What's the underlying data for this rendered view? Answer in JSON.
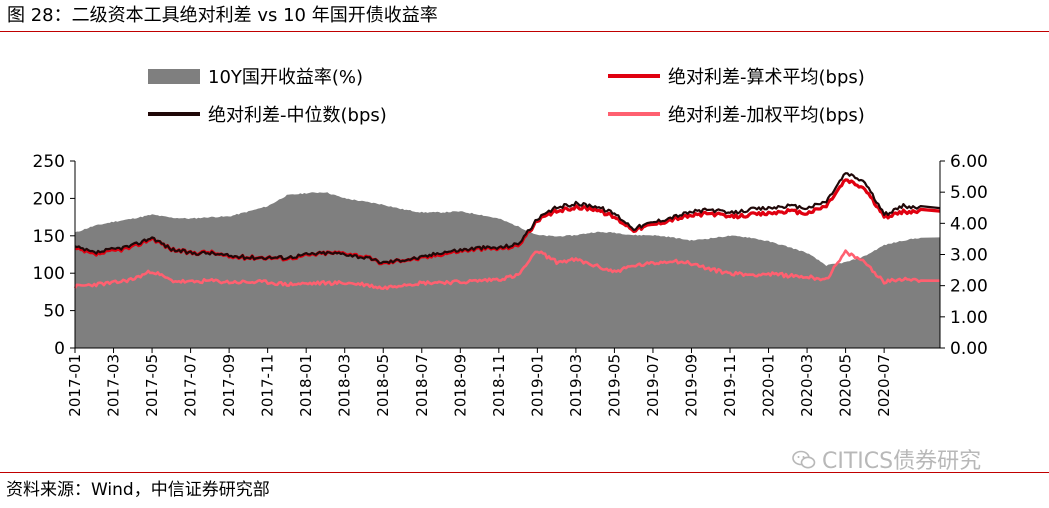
{
  "header": {
    "title": "图 28：二级资本工具绝对利差  vs 10 年国开债收益率"
  },
  "footer": {
    "source": "资料来源：Wind，中信证券研究部"
  },
  "watermark": {
    "text": "CITICS债券研究",
    "icon": "wechat-icon"
  },
  "colors": {
    "area": "#7f7f7f",
    "mean": "#e00010",
    "median": "#200808",
    "weighted": "#ff6070",
    "rule": "#c00000"
  },
  "chart_data": {
    "type": "line",
    "legend": [
      {
        "name": "10Y国开收益率(%)",
        "kind": "area",
        "color": "#7f7f7f"
      },
      {
        "name": "绝对利差-算术平均(bps)",
        "kind": "line",
        "color": "#e00010"
      },
      {
        "name": "绝对利差-中位数(bps)",
        "kind": "line",
        "color": "#200808"
      },
      {
        "name": "绝对利差-加权平均(bps)",
        "kind": "line",
        "color": "#ff6070"
      }
    ],
    "x_tick_labels": [
      "2017-01",
      "2017-03",
      "2017-05",
      "2017-07",
      "2017-09",
      "2017-11",
      "2018-01",
      "2018-03",
      "2018-05",
      "2018-07",
      "2018-09",
      "2018-11",
      "2019-01",
      "2019-03",
      "2019-05",
      "2019-07",
      "2019-09",
      "2019-11",
      "2020-01",
      "2020-03",
      "2020-05",
      "2020-07"
    ],
    "x_range": [
      "2017-01",
      "2020-09"
    ],
    "y_left": {
      "ticks": [
        "0",
        "50",
        "100",
        "150",
        "200",
        "250"
      ],
      "ylim": [
        0,
        250
      ]
    },
    "y_right": {
      "ticks": [
        "0.00",
        "1.00",
        "2.00",
        "3.00",
        "4.00",
        "5.00",
        "6.00"
      ],
      "ylim": [
        0,
        6
      ]
    },
    "x": [
      "2017-01",
      "2017-02",
      "2017-03",
      "2017-04",
      "2017-05",
      "2017-06",
      "2017-07",
      "2017-08",
      "2017-09",
      "2017-10",
      "2017-11",
      "2017-12",
      "2018-01",
      "2018-02",
      "2018-03",
      "2018-04",
      "2018-05",
      "2018-06",
      "2018-07",
      "2018-08",
      "2018-09",
      "2018-10",
      "2018-11",
      "2018-12",
      "2019-01",
      "2019-02",
      "2019-03",
      "2019-04",
      "2019-05",
      "2019-06",
      "2019-07",
      "2019-08",
      "2019-09",
      "2019-10",
      "2019-11",
      "2019-12",
      "2020-01",
      "2020-02",
      "2020-03",
      "2020-04",
      "2020-05",
      "2020-06",
      "2020-07",
      "2020-08",
      "2020-09"
    ],
    "series": [
      {
        "name": "10Y国开收益率(%)",
        "axis": "right",
        "values": [
          3.7,
          3.92,
          4.05,
          4.15,
          4.28,
          4.18,
          4.15,
          4.2,
          4.22,
          4.38,
          4.55,
          4.9,
          4.97,
          5.0,
          4.8,
          4.7,
          4.6,
          4.45,
          4.35,
          4.35,
          4.38,
          4.28,
          4.15,
          3.9,
          3.62,
          3.58,
          3.62,
          3.72,
          3.7,
          3.62,
          3.62,
          3.55,
          3.45,
          3.52,
          3.6,
          3.55,
          3.42,
          3.25,
          3.05,
          2.65,
          2.75,
          2.95,
          3.3,
          3.45,
          3.55
        ]
      },
      {
        "name": "绝对利差-算术平均(bps)",
        "axis": "left",
        "values": [
          133,
          125,
          130,
          135,
          147,
          132,
          127,
          128,
          122,
          121,
          121,
          120,
          124,
          127,
          127,
          122,
          113,
          118,
          120,
          126,
          130,
          133,
          133,
          137,
          170,
          183,
          188,
          186,
          175,
          158,
          165,
          172,
          177,
          180,
          175,
          178,
          180,
          183,
          180,
          190,
          225,
          213,
          175,
          182,
          183
        ]
      },
      {
        "name": "绝对利差-中位数(bps)",
        "axis": "left",
        "values": [
          135,
          127,
          132,
          137,
          148,
          132,
          127,
          127,
          123,
          121,
          121,
          121,
          125,
          127,
          126,
          121,
          114,
          118,
          121,
          128,
          131,
          134,
          134,
          139,
          172,
          188,
          193,
          190,
          180,
          160,
          168,
          175,
          182,
          185,
          180,
          185,
          187,
          190,
          187,
          196,
          234,
          222,
          178,
          190,
          187
        ]
      },
      {
        "name": "绝对利差-加权平均(bps)",
        "axis": "left",
        "values": [
          82,
          85,
          87,
          92,
          103,
          90,
          88,
          90,
          88,
          88,
          88,
          85,
          86,
          87,
          87,
          85,
          80,
          85,
          87,
          88,
          88,
          90,
          92,
          97,
          130,
          115,
          118,
          110,
          102,
          110,
          113,
          117,
          113,
          105,
          100,
          98,
          99,
          97,
          95,
          92,
          128,
          115,
          88,
          93,
          90
        ]
      }
    ]
  }
}
